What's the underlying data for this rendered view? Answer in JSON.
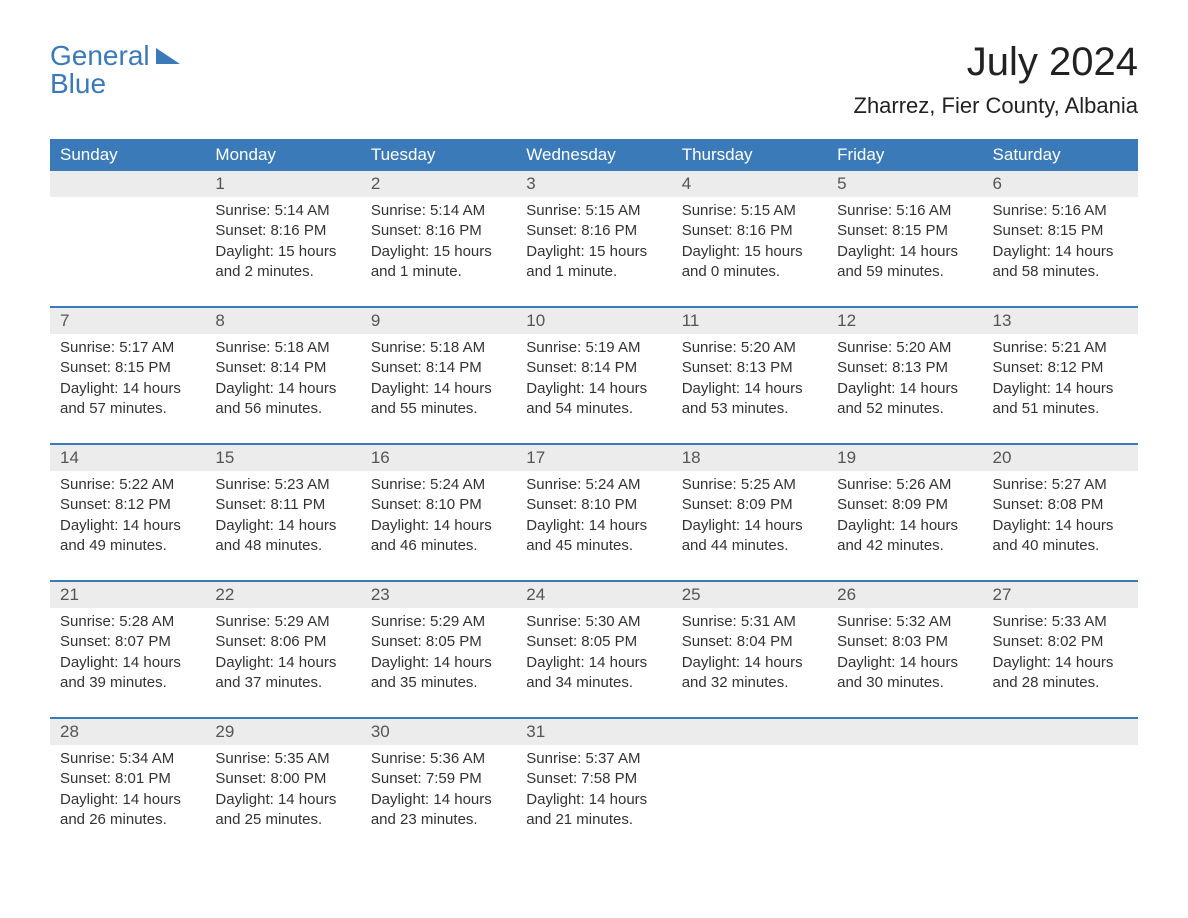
{
  "logo": {
    "line1": "General",
    "line2": "Blue"
  },
  "title": "July 2024",
  "location": "Zharrez, Fier County, Albania",
  "colors": {
    "header_bg": "#3b7ab8",
    "header_text": "#ffffff",
    "daynum_bg": "#ececec",
    "border": "#3b7ab8",
    "text": "#333333"
  },
  "day_headers": [
    "Sunday",
    "Monday",
    "Tuesday",
    "Wednesday",
    "Thursday",
    "Friday",
    "Saturday"
  ],
  "weeks": [
    [
      {
        "day": "",
        "sunrise": "",
        "sunset": "",
        "daylight": ""
      },
      {
        "day": "1",
        "sunrise": "5:14 AM",
        "sunset": "8:16 PM",
        "daylight": "15 hours and 2 minutes."
      },
      {
        "day": "2",
        "sunrise": "5:14 AM",
        "sunset": "8:16 PM",
        "daylight": "15 hours and 1 minute."
      },
      {
        "day": "3",
        "sunrise": "5:15 AM",
        "sunset": "8:16 PM",
        "daylight": "15 hours and 1 minute."
      },
      {
        "day": "4",
        "sunrise": "5:15 AM",
        "sunset": "8:16 PM",
        "daylight": "15 hours and 0 minutes."
      },
      {
        "day": "5",
        "sunrise": "5:16 AM",
        "sunset": "8:15 PM",
        "daylight": "14 hours and 59 minutes."
      },
      {
        "day": "6",
        "sunrise": "5:16 AM",
        "sunset": "8:15 PM",
        "daylight": "14 hours and 58 minutes."
      }
    ],
    [
      {
        "day": "7",
        "sunrise": "5:17 AM",
        "sunset": "8:15 PM",
        "daylight": "14 hours and 57 minutes."
      },
      {
        "day": "8",
        "sunrise": "5:18 AM",
        "sunset": "8:14 PM",
        "daylight": "14 hours and 56 minutes."
      },
      {
        "day": "9",
        "sunrise": "5:18 AM",
        "sunset": "8:14 PM",
        "daylight": "14 hours and 55 minutes."
      },
      {
        "day": "10",
        "sunrise": "5:19 AM",
        "sunset": "8:14 PM",
        "daylight": "14 hours and 54 minutes."
      },
      {
        "day": "11",
        "sunrise": "5:20 AM",
        "sunset": "8:13 PM",
        "daylight": "14 hours and 53 minutes."
      },
      {
        "day": "12",
        "sunrise": "5:20 AM",
        "sunset": "8:13 PM",
        "daylight": "14 hours and 52 minutes."
      },
      {
        "day": "13",
        "sunrise": "5:21 AM",
        "sunset": "8:12 PM",
        "daylight": "14 hours and 51 minutes."
      }
    ],
    [
      {
        "day": "14",
        "sunrise": "5:22 AM",
        "sunset": "8:12 PM",
        "daylight": "14 hours and 49 minutes."
      },
      {
        "day": "15",
        "sunrise": "5:23 AM",
        "sunset": "8:11 PM",
        "daylight": "14 hours and 48 minutes."
      },
      {
        "day": "16",
        "sunrise": "5:24 AM",
        "sunset": "8:10 PM",
        "daylight": "14 hours and 46 minutes."
      },
      {
        "day": "17",
        "sunrise": "5:24 AM",
        "sunset": "8:10 PM",
        "daylight": "14 hours and 45 minutes."
      },
      {
        "day": "18",
        "sunrise": "5:25 AM",
        "sunset": "8:09 PM",
        "daylight": "14 hours and 44 minutes."
      },
      {
        "day": "19",
        "sunrise": "5:26 AM",
        "sunset": "8:09 PM",
        "daylight": "14 hours and 42 minutes."
      },
      {
        "day": "20",
        "sunrise": "5:27 AM",
        "sunset": "8:08 PM",
        "daylight": "14 hours and 40 minutes."
      }
    ],
    [
      {
        "day": "21",
        "sunrise": "5:28 AM",
        "sunset": "8:07 PM",
        "daylight": "14 hours and 39 minutes."
      },
      {
        "day": "22",
        "sunrise": "5:29 AM",
        "sunset": "8:06 PM",
        "daylight": "14 hours and 37 minutes."
      },
      {
        "day": "23",
        "sunrise": "5:29 AM",
        "sunset": "8:05 PM",
        "daylight": "14 hours and 35 minutes."
      },
      {
        "day": "24",
        "sunrise": "5:30 AM",
        "sunset": "8:05 PM",
        "daylight": "14 hours and 34 minutes."
      },
      {
        "day": "25",
        "sunrise": "5:31 AM",
        "sunset": "8:04 PM",
        "daylight": "14 hours and 32 minutes."
      },
      {
        "day": "26",
        "sunrise": "5:32 AM",
        "sunset": "8:03 PM",
        "daylight": "14 hours and 30 minutes."
      },
      {
        "day": "27",
        "sunrise": "5:33 AM",
        "sunset": "8:02 PM",
        "daylight": "14 hours and 28 minutes."
      }
    ],
    [
      {
        "day": "28",
        "sunrise": "5:34 AM",
        "sunset": "8:01 PM",
        "daylight": "14 hours and 26 minutes."
      },
      {
        "day": "29",
        "sunrise": "5:35 AM",
        "sunset": "8:00 PM",
        "daylight": "14 hours and 25 minutes."
      },
      {
        "day": "30",
        "sunrise": "5:36 AM",
        "sunset": "7:59 PM",
        "daylight": "14 hours and 23 minutes."
      },
      {
        "day": "31",
        "sunrise": "5:37 AM",
        "sunset": "7:58 PM",
        "daylight": "14 hours and 21 minutes."
      },
      {
        "day": "",
        "sunrise": "",
        "sunset": "",
        "daylight": ""
      },
      {
        "day": "",
        "sunrise": "",
        "sunset": "",
        "daylight": ""
      },
      {
        "day": "",
        "sunrise": "",
        "sunset": "",
        "daylight": ""
      }
    ]
  ],
  "labels": {
    "sunrise": "Sunrise:",
    "sunset": "Sunset:",
    "daylight": "Daylight:"
  }
}
